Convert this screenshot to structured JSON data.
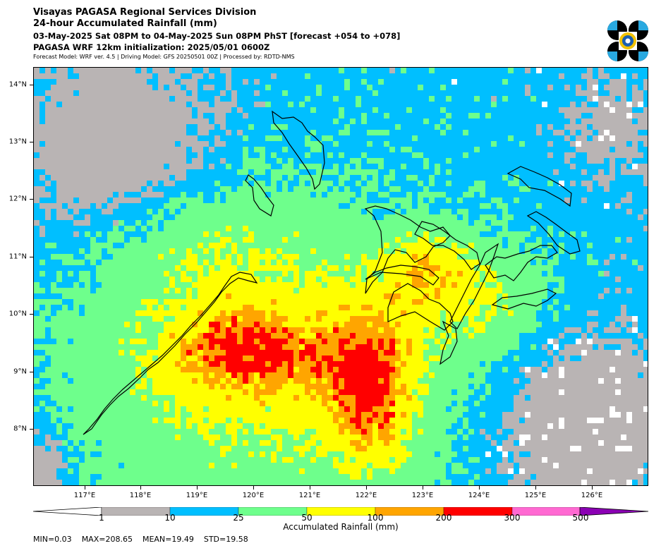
{
  "header": {
    "title": "Visayas PAGASA Regional Services Division",
    "subtitle": "24-hour Accumulated Rainfall (mm)",
    "period": "03-May-2025 Sat 08PM to 04-May-2025 Sun 08PM PhST [forecast +054 to +078]",
    "model_init": "PAGASA WRF 12km initialization: 2025/05/01 0600Z",
    "credits": "Forecast Model: WRF ver. 4.5 | Driving Model: GFS 20250501 00Z | Processed by: RDTD-NMS"
  },
  "map": {
    "lat_labels": [
      "14°N",
      "13°N",
      "12°N",
      "11°N",
      "10°N",
      "9°N",
      "8°N"
    ],
    "lon_labels": [
      "117°E",
      "118°E",
      "119°E",
      "120°E",
      "121°E",
      "122°E",
      "123°E",
      "124°E",
      "125°E",
      "126°E"
    ]
  },
  "colorbar": {
    "title": "Accumulated Rainfall (mm)",
    "tick_labels": [
      "1",
      "10",
      "25",
      "50",
      "100",
      "200",
      "300",
      "500"
    ],
    "colors": [
      "#b9b4b4",
      "#00bfff",
      "#6eff8c",
      "#ffff00",
      "#ffa500",
      "#ff0000",
      "#ff69d2",
      "#8b00b4"
    ]
  },
  "stats": {
    "min_label": "MIN=0.03",
    "max_label": "MAX=208.65",
    "mean_label": "MEAN=19.49",
    "std_label": "STD=19.58"
  }
}
